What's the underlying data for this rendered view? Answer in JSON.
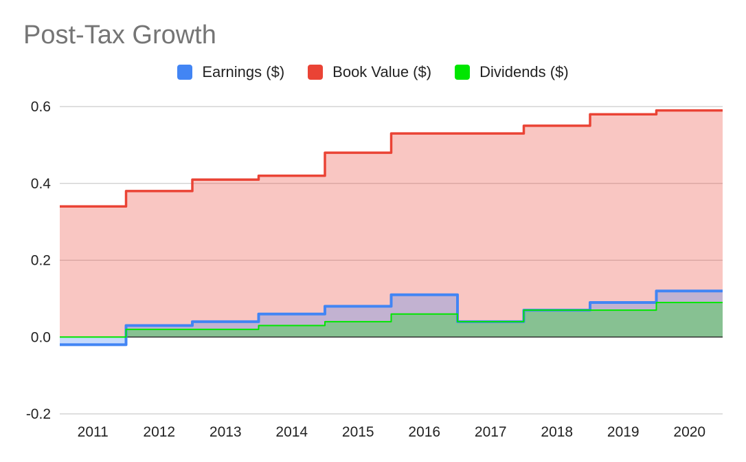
{
  "chart_data": {
    "type": "area",
    "title": "Post-Tax Growth",
    "categories": [
      "2011",
      "2012",
      "2013",
      "2014",
      "2015",
      "2016",
      "2017",
      "2018",
      "2019",
      "2020"
    ],
    "series": [
      {
        "name": "Earnings ($)",
        "color": "#4285f4",
        "values": [
          -0.02,
          0.03,
          0.04,
          0.06,
          0.08,
          0.11,
          0.04,
          0.07,
          0.09,
          0.12
        ]
      },
      {
        "name": "Book Value ($)",
        "color": "#ea4335",
        "values": [
          0.34,
          0.38,
          0.41,
          0.42,
          0.48,
          0.53,
          0.53,
          0.55,
          0.58,
          0.59
        ]
      },
      {
        "name": "Dividends ($)",
        "color": "#00e600",
        "values": [
          0.0,
          0.02,
          0.02,
          0.03,
          0.04,
          0.06,
          0.04,
          0.07,
          0.07,
          0.09
        ]
      }
    ],
    "stepped": true,
    "ylim": [
      -0.2,
      0.6
    ],
    "yticks": [
      "-0.2",
      "0.0",
      "0.2",
      "0.4",
      "0.6"
    ],
    "legend_position": "top",
    "grid": true
  }
}
